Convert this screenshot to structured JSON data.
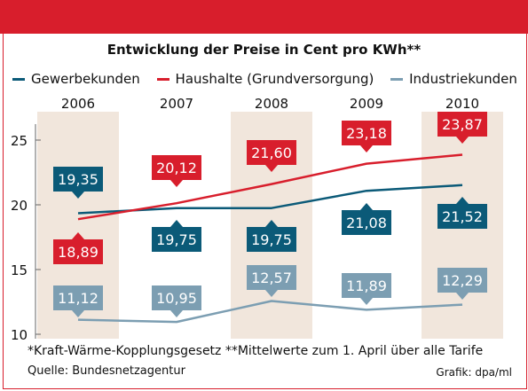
{
  "colors": {
    "frame": "#d81e2c",
    "band": "#f1e6dc",
    "axis": "#666666"
  },
  "chart_data": {
    "type": "line",
    "title": "Entwicklung der Preise in Cent pro KWh**",
    "categories": [
      "2006",
      "2007",
      "2008",
      "2009",
      "2010"
    ],
    "ylim": [
      10,
      27
    ],
    "yticks": [
      10,
      15,
      20,
      25
    ],
    "grid": false,
    "legend_position": "top",
    "series": [
      {
        "name": "Gewerbekunden",
        "color": "#0b5a78",
        "values": [
          19.35,
          19.75,
          19.75,
          21.08,
          21.52
        ],
        "labels": [
          "19,35",
          "19,75",
          "19,75",
          "21,08",
          "21,52"
        ]
      },
      {
        "name": "Haushalte (Grundversorgung)",
        "color": "#d81e2c",
        "values": [
          18.89,
          20.12,
          21.6,
          23.18,
          23.87
        ],
        "labels": [
          "18,89",
          "20,12",
          "21,60",
          "23,18",
          "23,87"
        ]
      },
      {
        "name": "Industriekunden",
        "color": "#7c9eb2",
        "values": [
          11.12,
          10.95,
          12.57,
          11.89,
          12.29
        ],
        "labels": [
          "11,12",
          "10,95",
          "12,57",
          "11,89",
          "12,29"
        ]
      }
    ]
  },
  "footnote": "*Kraft-Wärme-Kopplungsgesetz   **Mittelwerte zum 1. April über alle Tarife",
  "source": "Quelle: Bundesnetzagentur",
  "credit": "Grafik: dpa/ml"
}
